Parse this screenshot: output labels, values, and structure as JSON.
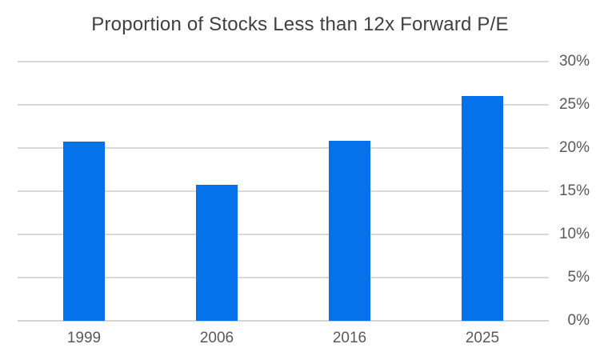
{
  "chart_data": {
    "type": "bar",
    "title": "Proportion of Stocks Less than 12x Forward P/E",
    "categories": [
      "1999",
      "2006",
      "2016",
      "2025"
    ],
    "values": [
      20.7,
      15.7,
      20.8,
      26.0
    ],
    "xlabel": "",
    "ylabel": "",
    "ylim": [
      0,
      30
    ],
    "ytick_step": 5,
    "ytick_labels": [
      "0%",
      "5%",
      "10%",
      "15%",
      "20%",
      "25%",
      "30%"
    ],
    "yaxis_position": "right",
    "grid": "horizontal",
    "legend": "none",
    "colors": {
      "bar": "#0572EC",
      "title_text": "#404040",
      "axis_text": "#595959",
      "gridline": "#D9D9D9",
      "baseline": "#D4D4D4",
      "background": "#FFFFFF"
    }
  }
}
